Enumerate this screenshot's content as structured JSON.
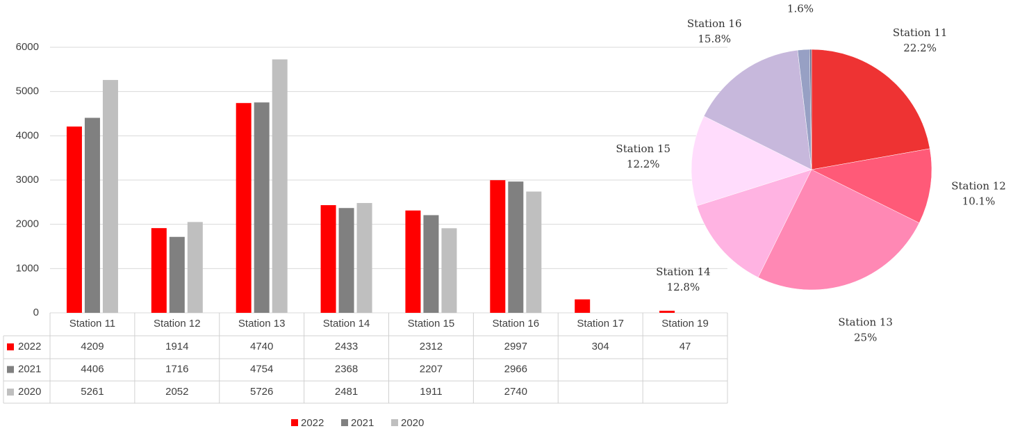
{
  "chart_data": [
    {
      "type": "bar",
      "categories": [
        "Station 11",
        "Station 12",
        "Station 13",
        "Station 14",
        "Station 15",
        "Station 16",
        "Station 17",
        "Station 19"
      ],
      "series": [
        {
          "name": "2022",
          "color": "#ff0000",
          "values": [
            4209,
            1914,
            4740,
            2433,
            2312,
            2997,
            304,
            47
          ]
        },
        {
          "name": "2021",
          "color": "#808080",
          "values": [
            4406,
            1716,
            4754,
            2368,
            2207,
            2966,
            null,
            null
          ]
        },
        {
          "name": "2020",
          "color": "#bfbfbf",
          "values": [
            5261,
            2052,
            5726,
            2481,
            1911,
            2740,
            null,
            null
          ]
        }
      ],
      "ylim": [
        0,
        6000
      ],
      "yticks": [
        0,
        1000,
        2000,
        3000,
        4000,
        5000,
        6000
      ],
      "grid": true,
      "legend": "bottom"
    },
    {
      "type": "pie",
      "categories": [
        "Station 11",
        "Station 12",
        "Station 13",
        "Station 14",
        "Station 15",
        "Station 16",
        "Station 17",
        null
      ],
      "values": [
        22.2,
        10.1,
        25,
        12.8,
        12.2,
        15.8,
        1.6,
        0.25
      ],
      "value_labels": [
        "22.2%",
        "10.1%",
        "25%",
        "12.8%",
        "12.2%",
        "15.8%",
        "1.6%",
        null
      ],
      "colors": [
        "#ee3333",
        "#ff5a78",
        "#ff88b4",
        "#ffb3e2",
        "#ffdcfc",
        "#c7b8dc",
        "#97a0c4",
        "#6a7090"
      ]
    }
  ]
}
